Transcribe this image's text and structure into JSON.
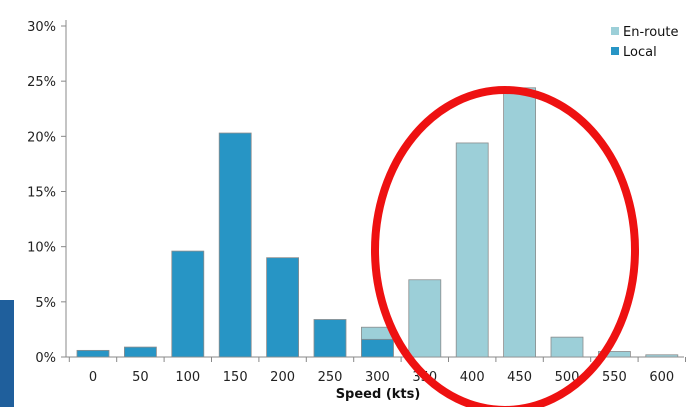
{
  "chart_data": {
    "type": "bar",
    "categories": [
      "0",
      "50",
      "100",
      "150",
      "200",
      "250",
      "300",
      "350",
      "400",
      "450",
      "500",
      "550",
      "600"
    ],
    "series": [
      {
        "name": "En-route",
        "color": "#9ccfd8",
        "values": [
          0,
          0,
          0,
          0,
          0,
          0,
          2.7,
          7.0,
          19.4,
          24.4,
          1.8,
          0.5,
          0.2
        ]
      },
      {
        "name": "Local",
        "color": "#2795c5",
        "values": [
          0.6,
          0.9,
          9.6,
          20.3,
          9.0,
          3.4,
          1.6,
          0,
          0,
          0,
          0,
          0,
          0
        ]
      }
    ],
    "title": "",
    "xlabel": "Speed (kts)",
    "ylabel": "",
    "ylim": [
      0,
      30
    ],
    "yticks": [
      "0%",
      "5%",
      "10%",
      "15%",
      "20%",
      "25%",
      "30%"
    ],
    "grid": false,
    "legend": "top-right",
    "annotation": {
      "shape": "ellipse",
      "color": "#ee1111"
    }
  }
}
